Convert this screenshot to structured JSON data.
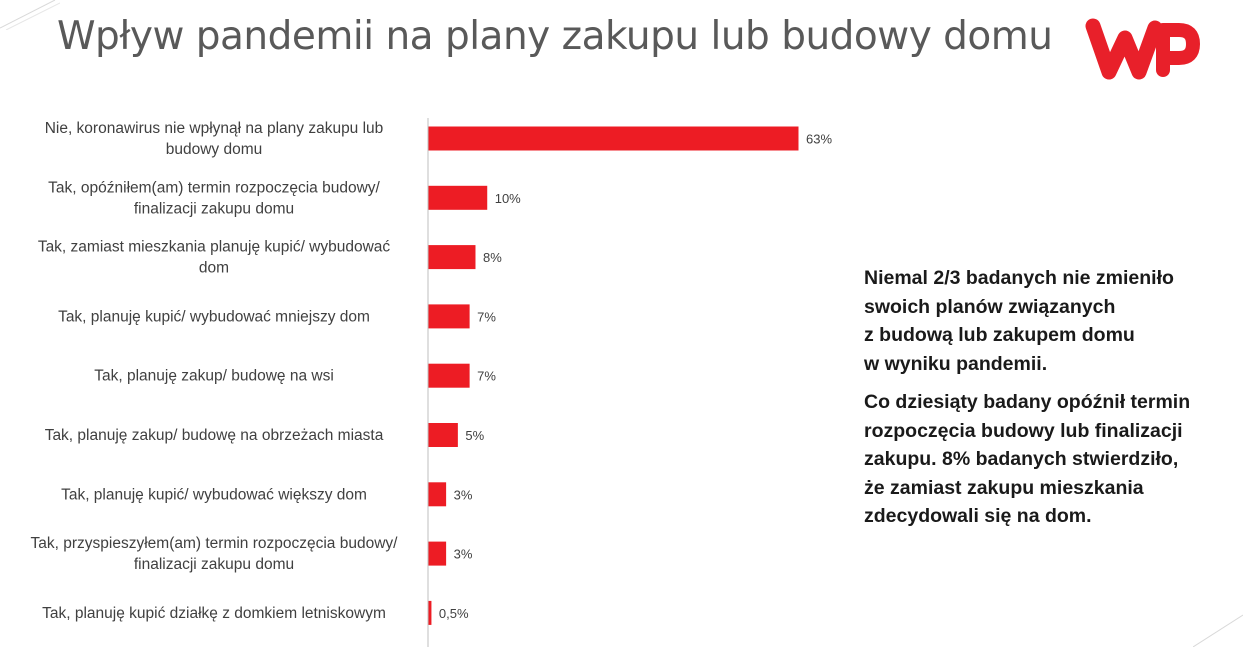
{
  "title": "Wpływ pandemii na plany zakupu lub budowy domu",
  "logo": {
    "name": "wp-logo",
    "color": "#e8202a"
  },
  "colors": {
    "bar": "#ed1c24",
    "axis": "#bfbfbf",
    "text": "#404040"
  },
  "notes": [
    [
      "Niemal 2/3 badanych nie zmieniło",
      "swoich planów związanych",
      "z budową lub zakupem domu",
      "w wyniku pandemii."
    ],
    [
      "Co dziesiąty badany opóźnił termin",
      "rozpoczęcia budowy lub finalizacji",
      "zakupu. 8% badanych stwierdziło,",
      "że zamiast zakupu mieszkania",
      "zdecydowali się na dom."
    ]
  ],
  "chart_data": {
    "type": "bar",
    "orientation": "horizontal",
    "title": "",
    "xlabel": "",
    "ylabel": "",
    "grid": false,
    "legend": "none",
    "xlim": [
      0,
      63
    ],
    "categories": [
      [
        "Nie, koronawirus nie wpłynął na plany zakupu lub",
        "budowy domu"
      ],
      [
        "Tak, opóźniłem(am) termin rozpoczęcia budowy/",
        "finalizacji zakupu domu"
      ],
      [
        "Tak, zamiast mieszkania planuję kupić/ wybudować",
        "dom"
      ],
      [
        "Tak, planuję kupić/ wybudować mniejszy dom"
      ],
      [
        "Tak, planuję zakup/ budowę na wsi"
      ],
      [
        "Tak, planuję zakup/ budowę na obrzeżach miasta"
      ],
      [
        "Tak, planuję kupić/ wybudować większy dom"
      ],
      [
        "Tak, przyspieszyłem(am) termin rozpoczęcia budowy/",
        "finalizacji zakupu domu"
      ],
      [
        "Tak, planuję kupić działkę z domkiem letniskowym"
      ]
    ],
    "values": [
      63,
      10,
      8,
      7,
      7,
      5,
      3,
      3,
      0.5
    ],
    "value_labels": [
      "63%",
      "10%",
      "8%",
      "7%",
      "7%",
      "5%",
      "3%",
      "3%",
      "0,5%"
    ]
  }
}
